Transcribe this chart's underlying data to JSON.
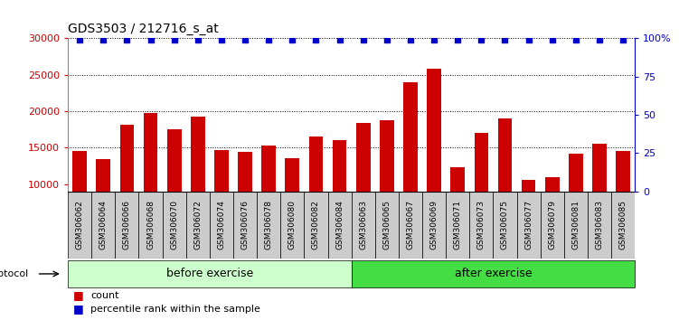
{
  "title": "GDS3503 / 212716_s_at",
  "categories": [
    "GSM306062",
    "GSM306064",
    "GSM306066",
    "GSM306068",
    "GSM306070",
    "GSM306072",
    "GSM306074",
    "GSM306076",
    "GSM306078",
    "GSM306080",
    "GSM306082",
    "GSM306084",
    "GSM306063",
    "GSM306065",
    "GSM306067",
    "GSM306069",
    "GSM306071",
    "GSM306073",
    "GSM306075",
    "GSM306077",
    "GSM306079",
    "GSM306081",
    "GSM306083",
    "GSM306085"
  ],
  "bar_values": [
    14500,
    13400,
    18200,
    19700,
    17500,
    19200,
    14700,
    14400,
    15300,
    13500,
    16500,
    16000,
    18400,
    18800,
    24000,
    25800,
    12300,
    17000,
    19000,
    10600,
    10900,
    14200,
    15500,
    14500
  ],
  "percentile_values": [
    99,
    99,
    99,
    99,
    99,
    99,
    99,
    99,
    99,
    99,
    99,
    99,
    99,
    99,
    99,
    99,
    99,
    99,
    99,
    99,
    99,
    99,
    99,
    99
  ],
  "bar_color": "#cc0000",
  "percentile_color": "#0000cc",
  "before_count": 12,
  "after_count": 12,
  "before_label": "before exercise",
  "after_label": "after exercise",
  "before_color": "#ccffcc",
  "after_color": "#44dd44",
  "protocol_label": "protocol",
  "ylim_left": [
    9000,
    30000
  ],
  "ylim_right": [
    0,
    100
  ],
  "yticks_left": [
    10000,
    15000,
    20000,
    25000,
    30000
  ],
  "yticks_right": [
    0,
    25,
    50,
    75,
    100
  ],
  "grid_values": [
    15000,
    20000,
    25000
  ],
  "bar_width": 0.6,
  "bg_color": "#ffffff",
  "plot_bg": "#ffffff",
  "label_bg": "#cccccc",
  "legend_count_label": "count",
  "legend_pct_label": "percentile rank within the sample"
}
